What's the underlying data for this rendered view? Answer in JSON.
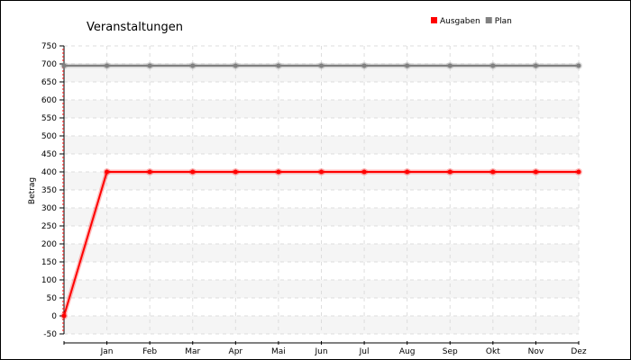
{
  "chart_data": {
    "type": "line",
    "title": "Veranstaltungen",
    "xlabel": "",
    "ylabel": "Betrag",
    "categories": [
      "",
      "Jan",
      "Feb",
      "Mar",
      "Apr",
      "Mai",
      "Jun",
      "Jul",
      "Aug",
      "Sep",
      "Okt",
      "Nov",
      "Dez"
    ],
    "series": [
      {
        "name": "Ausgaben",
        "color": "#ff0000",
        "values": [
          0,
          400,
          400,
          400,
          400,
          400,
          400,
          400,
          400,
          400,
          400,
          400,
          400
        ]
      },
      {
        "name": "Plan",
        "color": "#808080",
        "values": [
          695,
          695,
          695,
          695,
          695,
          695,
          695,
          695,
          695,
          695,
          695,
          695,
          695
        ]
      }
    ],
    "ylim": [
      -50,
      750
    ],
    "ytick_step": 50,
    "yticks": [
      -50,
      0,
      50,
      100,
      150,
      200,
      250,
      300,
      350,
      400,
      450,
      500,
      550,
      600,
      650,
      700,
      750
    ],
    "grid": true,
    "legend_position": "top-right"
  }
}
